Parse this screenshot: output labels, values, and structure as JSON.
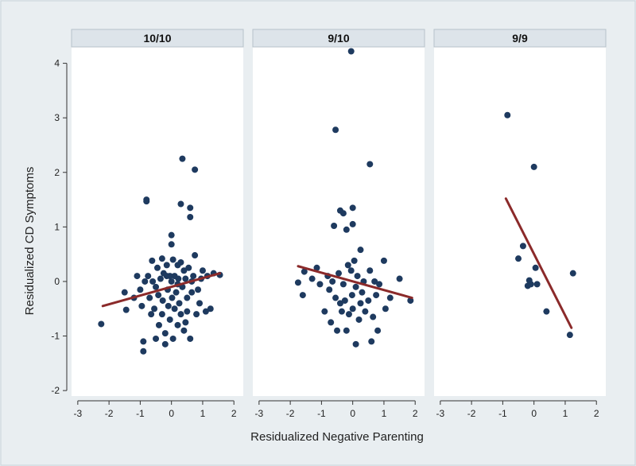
{
  "chart_data": {
    "type": "scatter",
    "ylabel": "Residualized CD Symptoms",
    "xlabel": "Residualized Negative Parenting",
    "xlim": [
      -3.2,
      2.3
    ],
    "ylim": [
      -2.1,
      4.3
    ],
    "xticks": [
      -3,
      -2,
      -1,
      0,
      1,
      2
    ],
    "yticks": [
      -2,
      -1,
      0,
      1,
      2,
      3,
      4
    ],
    "colors": {
      "points": "#1e3a5f",
      "fit_line": "#8b2a2a"
    },
    "panels": [
      {
        "title": "10/10",
        "fit": [
          [
            -2.2,
            -0.45
          ],
          [
            1.55,
            0.15
          ]
        ],
        "points": [
          [
            -2.25,
            -0.78
          ],
          [
            -1.5,
            -0.2
          ],
          [
            -1.45,
            -0.52
          ],
          [
            -1.2,
            -0.3
          ],
          [
            -1.0,
            -0.15
          ],
          [
            -0.95,
            -0.45
          ],
          [
            -0.9,
            -1.1
          ],
          [
            -0.9,
            -1.28
          ],
          [
            -0.85,
            0.0
          ],
          [
            -0.8,
            1.5
          ],
          [
            -0.8,
            1.47
          ],
          [
            -0.75,
            0.1
          ],
          [
            -0.7,
            -0.3
          ],
          [
            -0.65,
            -0.6
          ],
          [
            -0.62,
            0.38
          ],
          [
            -0.6,
            0.0
          ],
          [
            -0.55,
            -0.5
          ],
          [
            -0.5,
            -0.1
          ],
          [
            -0.5,
            -1.05
          ],
          [
            -0.45,
            0.25
          ],
          [
            -0.42,
            -0.25
          ],
          [
            -0.4,
            -0.8
          ],
          [
            -0.35,
            0.05
          ],
          [
            -0.3,
            0.42
          ],
          [
            -0.3,
            -0.6
          ],
          [
            -0.28,
            -0.35
          ],
          [
            -0.25,
            0.15
          ],
          [
            -0.2,
            -0.95
          ],
          [
            -0.2,
            -1.15
          ],
          [
            -0.15,
            0.3
          ],
          [
            -0.12,
            -0.15
          ],
          [
            -0.1,
            -0.45
          ],
          [
            -0.05,
            0.1
          ],
          [
            -0.05,
            -0.7
          ],
          [
            0.0,
            0.85
          ],
          [
            0.0,
            0.68
          ],
          [
            0.02,
            -0.3
          ],
          [
            0.05,
            0.4
          ],
          [
            0.05,
            -1.05
          ],
          [
            0.1,
            0.1
          ],
          [
            0.1,
            -0.5
          ],
          [
            0.15,
            -0.2
          ],
          [
            0.2,
            0.3
          ],
          [
            0.2,
            -0.8
          ],
          [
            0.22,
            0.05
          ],
          [
            0.25,
            -0.4
          ],
          [
            0.3,
            1.42
          ],
          [
            0.3,
            0.35
          ],
          [
            0.3,
            -0.6
          ],
          [
            0.35,
            2.25
          ],
          [
            0.35,
            -0.1
          ],
          [
            0.4,
            0.2
          ],
          [
            0.4,
            -0.9
          ],
          [
            0.45,
            0.05
          ],
          [
            0.5,
            -0.3
          ],
          [
            0.5,
            -0.55
          ],
          [
            0.55,
            0.25
          ],
          [
            0.6,
            1.35
          ],
          [
            0.6,
            1.18
          ],
          [
            0.6,
            -1.05
          ],
          [
            0.65,
            -0.2
          ],
          [
            0.65,
            0.0
          ],
          [
            0.7,
            0.1
          ],
          [
            0.75,
            2.05
          ],
          [
            0.75,
            0.48
          ],
          [
            0.8,
            -0.6
          ],
          [
            0.85,
            -0.15
          ],
          [
            0.9,
            -0.4
          ],
          [
            0.95,
            0.05
          ],
          [
            1.0,
            0.2
          ],
          [
            1.1,
            -0.55
          ],
          [
            1.15,
            0.1
          ],
          [
            1.25,
            -0.5
          ],
          [
            1.35,
            0.15
          ],
          [
            1.55,
            0.12
          ],
          [
            -1.1,
            0.1
          ],
          [
            0.2,
            -0.05
          ],
          [
            -0.15,
            0.1
          ],
          [
            0.45,
            -0.75
          ],
          [
            0.0,
            0.0
          ]
        ]
      },
      {
        "title": "9/10",
        "fit": [
          [
            -1.75,
            0.28
          ],
          [
            1.9,
            -0.3
          ]
        ],
        "points": [
          [
            -1.75,
            -0.02
          ],
          [
            -1.6,
            -0.25
          ],
          [
            -1.55,
            0.18
          ],
          [
            -1.3,
            0.05
          ],
          [
            -1.15,
            0.25
          ],
          [
            -1.05,
            -0.05
          ],
          [
            -0.9,
            -0.55
          ],
          [
            -0.8,
            0.1
          ],
          [
            -0.7,
            -0.75
          ],
          [
            -0.65,
            0.0
          ],
          [
            -0.6,
            1.02
          ],
          [
            -0.55,
            2.78
          ],
          [
            -0.55,
            -0.3
          ],
          [
            -0.5,
            -0.9
          ],
          [
            -0.45,
            0.15
          ],
          [
            -0.4,
            1.3
          ],
          [
            -0.4,
            -0.4
          ],
          [
            -0.35,
            -0.55
          ],
          [
            -0.3,
            1.25
          ],
          [
            -0.25,
            -0.35
          ],
          [
            -0.2,
            0.95
          ],
          [
            -0.2,
            -0.9
          ],
          [
            -0.15,
            0.3
          ],
          [
            -0.12,
            -0.6
          ],
          [
            -0.05,
            4.22
          ],
          [
            -0.05,
            0.2
          ],
          [
            -0.02,
            -0.25
          ],
          [
            0.0,
            1.35
          ],
          [
            0.0,
            1.05
          ],
          [
            0.0,
            -0.5
          ],
          [
            0.05,
            0.38
          ],
          [
            0.1,
            -1.15
          ],
          [
            0.1,
            -0.1
          ],
          [
            0.15,
            0.1
          ],
          [
            0.2,
            -0.7
          ],
          [
            0.25,
            0.58
          ],
          [
            0.25,
            -0.4
          ],
          [
            0.3,
            -0.2
          ],
          [
            0.35,
            0.0
          ],
          [
            0.4,
            -0.55
          ],
          [
            0.5,
            -0.35
          ],
          [
            0.55,
            2.15
          ],
          [
            0.55,
            0.2
          ],
          [
            0.6,
            -1.1
          ],
          [
            0.65,
            -0.65
          ],
          [
            0.7,
            0.0
          ],
          [
            0.75,
            -0.25
          ],
          [
            0.8,
            -0.9
          ],
          [
            0.85,
            -0.05
          ],
          [
            1.0,
            0.38
          ],
          [
            1.05,
            -0.5
          ],
          [
            1.2,
            -0.3
          ],
          [
            1.5,
            0.05
          ],
          [
            1.85,
            -0.35
          ],
          [
            -0.75,
            -0.15
          ],
          [
            -0.3,
            -0.05
          ]
        ]
      },
      {
        "title": "9/9",
        "fit": [
          [
            -0.9,
            1.52
          ],
          [
            1.2,
            -0.85
          ]
        ],
        "points": [
          [
            -0.85,
            3.05
          ],
          [
            -0.5,
            0.42
          ],
          [
            -0.35,
            0.65
          ],
          [
            -0.2,
            -0.08
          ],
          [
            -0.1,
            -0.05
          ],
          [
            0.0,
            2.1
          ],
          [
            0.05,
            0.25
          ],
          [
            0.1,
            -0.05
          ],
          [
            0.4,
            -0.55
          ],
          [
            1.15,
            -0.98
          ],
          [
            1.25,
            0.15
          ],
          [
            -0.15,
            0.02
          ]
        ]
      }
    ]
  }
}
